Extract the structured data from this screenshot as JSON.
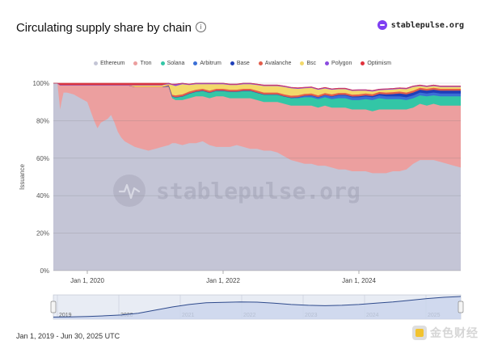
{
  "header": {
    "title": "Circulating supply share by chain",
    "info_icon": "info-icon",
    "brand": "stablepulse.org",
    "brand_color": "#7e3ff2"
  },
  "watermark": "stablepulse.org",
  "footer": {
    "date_range": "Jan 1, 2019 - Jun 30, 2025 UTC"
  },
  "corner_watermark": "金色财经",
  "navigator": {
    "years": [
      "2019",
      "2020",
      "2021",
      "2022",
      "2023",
      "2024",
      "2025"
    ]
  },
  "chart_data": {
    "type": "area",
    "stacked": true,
    "percent": true,
    "ylabel": "Issuance",
    "xlabel": "",
    "ylim": [
      0,
      100
    ],
    "y_ticks": [
      "0%",
      "20%",
      "40%",
      "60%",
      "80%",
      "100%"
    ],
    "x_ticks": [
      {
        "label": "Jan 1, 2020",
        "t": 2020.0
      },
      {
        "label": "Jan 1, 2022",
        "t": 2022.0
      },
      {
        "label": "Jan 1, 2024",
        "t": 2024.0
      }
    ],
    "x_range": [
      2019.5,
      2025.5
    ],
    "grid": true,
    "legend_position": "top",
    "x": [
      2019.5,
      2019.53,
      2019.56,
      2019.6,
      2019.62,
      2019.65,
      2019.7,
      2019.8,
      2019.9,
      2020.0,
      2020.1,
      2020.15,
      2020.2,
      2020.3,
      2020.35,
      2020.4,
      2020.45,
      2020.5,
      2020.55,
      2020.6,
      2020.7,
      2020.8,
      2020.9,
      2021.0,
      2021.1,
      2021.2,
      2021.25,
      2021.3,
      2021.4,
      2021.5,
      2021.6,
      2021.7,
      2021.8,
      2021.9,
      2022.0,
      2022.1,
      2022.2,
      2022.3,
      2022.4,
      2022.5,
      2022.6,
      2022.7,
      2022.8,
      2022.9,
      2023.0,
      2023.1,
      2023.2,
      2023.3,
      2023.4,
      2023.5,
      2023.6,
      2023.7,
      2023.8,
      2023.9,
      2024.0,
      2024.1,
      2024.2,
      2024.3,
      2024.4,
      2024.5,
      2024.6,
      2024.7,
      2024.8,
      2024.9,
      2025.0,
      2025.1,
      2025.2,
      2025.3,
      2025.4,
      2025.5
    ],
    "series": [
      {
        "name": "Ethereum",
        "color": "#c4c5d6",
        "values": [
          100,
          100,
          100,
          86,
          90,
          95,
          95,
          94,
          92,
          90,
          80,
          76,
          79,
          81,
          83,
          79,
          74,
          71,
          69,
          68,
          66,
          65,
          64,
          65,
          66,
          67,
          68,
          68,
          67,
          68,
          68,
          69,
          67,
          66,
          66,
          66,
          67,
          66,
          65,
          65,
          64,
          64,
          63,
          61,
          59,
          58,
          57,
          57,
          56,
          56,
          55,
          54,
          54,
          53,
          53,
          53,
          52,
          52,
          52,
          53,
          53,
          54,
          57,
          59,
          59,
          59,
          58,
          57,
          56,
          55
        ]
      },
      {
        "name": "Tron",
        "color": "#ec9f9f",
        "values": [
          0,
          0,
          0,
          13,
          9,
          4,
          4,
          5,
          7,
          9,
          19,
          23,
          20,
          18,
          16,
          20,
          25,
          28,
          30,
          31,
          32,
          33,
          34,
          33,
          32,
          31,
          24,
          23,
          24,
          24,
          25,
          24,
          25,
          27,
          27,
          26,
          25,
          26,
          27,
          26,
          26,
          26,
          27,
          28,
          29,
          30,
          31,
          31,
          31,
          32,
          32,
          33,
          33,
          33,
          33,
          33,
          33,
          34,
          34,
          33,
          33,
          32,
          30,
          30,
          29,
          30,
          30,
          31,
          32,
          33
        ]
      },
      {
        "name": "Solana",
        "color": "#33c6a6",
        "values": [
          0,
          0,
          0,
          0,
          0,
          0,
          0,
          0,
          0,
          0,
          0,
          0,
          0,
          0,
          0,
          0,
          0,
          0,
          0,
          0,
          0,
          0,
          0,
          0,
          0,
          0.5,
          1,
          1.5,
          2,
          2.5,
          2.5,
          3,
          3,
          3,
          3,
          3.5,
          3.5,
          4,
          4,
          4,
          4,
          4,
          4,
          4,
          4,
          4,
          4.5,
          4.5,
          4.5,
          4.5,
          4.5,
          5,
          5,
          5,
          5,
          5.5,
          6,
          6,
          5.5,
          5.5,
          5.5,
          5,
          5,
          4.5,
          5,
          4.5,
          5,
          5,
          5,
          5
        ]
      },
      {
        "name": "Arbitrum",
        "color": "#3b6fd6",
        "values": [
          0,
          0,
          0,
          0,
          0,
          0,
          0,
          0,
          0,
          0,
          0,
          0,
          0,
          0,
          0,
          0,
          0,
          0,
          0,
          0,
          0,
          0,
          0,
          0,
          0,
          0,
          0,
          0,
          0,
          0,
          0,
          0,
          0,
          0,
          0,
          0,
          0,
          0,
          0,
          0,
          0,
          0,
          0,
          0,
          0.3,
          0.5,
          0.8,
          1,
          1,
          1.2,
          1.3,
          1.5,
          1.5,
          1.5,
          1.5,
          1.5,
          1.5,
          1.5,
          1.5,
          1.5,
          1.5,
          1.5,
          1.5,
          1.5,
          1.5,
          1.5,
          1.5,
          1.5,
          1.5,
          1.5
        ]
      },
      {
        "name": "Base",
        "color": "#1f3fb8",
        "values": [
          0,
          0,
          0,
          0,
          0,
          0,
          0,
          0,
          0,
          0,
          0,
          0,
          0,
          0,
          0,
          0,
          0,
          0,
          0,
          0,
          0,
          0,
          0,
          0,
          0,
          0,
          0,
          0,
          0,
          0,
          0,
          0,
          0,
          0,
          0,
          0,
          0,
          0,
          0,
          0,
          0,
          0,
          0,
          0,
          0,
          0,
          0,
          0,
          0,
          0,
          0.2,
          0.3,
          0.3,
          0.4,
          0.5,
          0.5,
          0.6,
          0.8,
          1,
          1.2,
          1.5,
          1.5,
          1.5,
          1.5,
          1.5,
          1.5,
          1.5,
          1.5,
          1.5,
          1.5
        ]
      },
      {
        "name": "Avalanche",
        "color": "#e25d4b",
        "values": [
          0,
          0,
          0,
          0,
          0,
          0,
          0,
          0,
          0,
          0,
          0,
          0,
          0,
          0,
          0,
          0,
          0,
          0,
          0,
          0,
          0,
          0,
          0,
          0,
          0,
          0.5,
          0.8,
          1,
          1,
          1,
          1,
          1,
          1,
          1,
          1,
          1,
          1,
          1,
          1,
          1,
          1,
          1,
          1,
          1,
          1,
          1,
          1,
          1,
          1,
          1,
          1,
          1,
          1,
          1,
          1,
          1,
          1,
          1,
          1,
          1,
          1,
          1,
          1,
          1,
          1,
          1,
          1,
          1,
          1,
          1
        ]
      },
      {
        "name": "Bsc",
        "color": "#f3d96a",
        "values": [
          0,
          0,
          0,
          0,
          0,
          0,
          0,
          0,
          0,
          0,
          0,
          0,
          0,
          0,
          0,
          0,
          0,
          0,
          0,
          0,
          1,
          1,
          1,
          1,
          1,
          0.5,
          5.2,
          5,
          5.5,
          3.5,
          3,
          2.5,
          3.5,
          2.5,
          2.5,
          2.5,
          2.5,
          2.5,
          2.5,
          3,
          3.5,
          3.5,
          3.5,
          4,
          4,
          3.5,
          3,
          3,
          3,
          2.5,
          2.5,
          2,
          2,
          2,
          2,
          1.5,
          1.5,
          1,
          1.5,
          1.5,
          1.5,
          1.8,
          2,
          1,
          1,
          1,
          1,
          1,
          1,
          1
        ]
      },
      {
        "name": "Polygon",
        "color": "#8b4be0",
        "values": [
          0,
          0,
          0,
          0,
          0,
          0,
          0,
          0,
          0,
          0,
          0,
          0,
          0,
          0,
          0,
          0,
          0,
          0,
          0,
          0,
          0,
          0,
          0,
          0,
          0,
          0.5,
          0.5,
          1,
          0.5,
          0.5,
          0.5,
          0.5,
          0.5,
          0.5,
          0.5,
          0.5,
          0.5,
          0.5,
          0.5,
          0.5,
          0.5,
          0.5,
          0.5,
          0.5,
          0.5,
          0.5,
          0.5,
          0.5,
          0.5,
          0.5,
          0.5,
          0.5,
          0.5,
          0.5,
          0.5,
          0.5,
          0.5,
          0.5,
          0.5,
          0.5,
          0.5,
          0.5,
          0.5,
          0.5,
          0.5,
          0.5,
          0.5,
          0.5,
          0.5,
          0.5
        ]
      },
      {
        "name": "Optimism",
        "color": "#e0323c",
        "values": [
          0,
          0,
          0,
          1,
          1,
          1,
          1,
          1,
          1,
          1,
          1,
          1,
          1,
          1,
          1,
          1,
          1,
          1,
          1,
          1,
          1,
          1,
          1,
          1,
          1,
          1,
          0,
          0,
          0,
          0,
          0,
          0,
          0,
          0,
          0,
          0,
          0,
          0,
          0,
          0,
          0,
          0,
          0,
          0,
          0,
          0,
          0,
          0,
          0,
          0,
          0,
          0,
          0,
          0,
          0,
          0,
          0,
          0,
          0,
          0,
          0,
          0,
          0,
          0,
          0,
          0,
          0,
          0,
          0,
          0
        ]
      }
    ]
  }
}
